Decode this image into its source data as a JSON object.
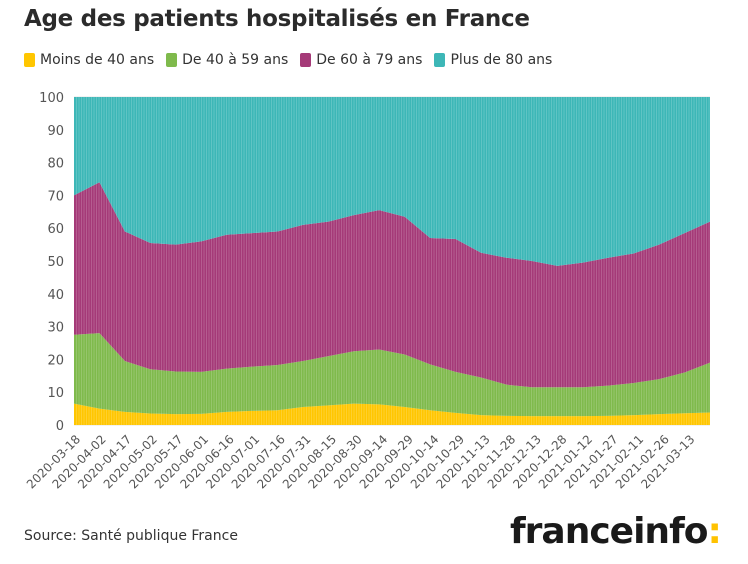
{
  "chart_data": {
    "type": "area",
    "stacked": true,
    "title": "Age des patients hospitalisés en France",
    "source": "Source: Santé publique France",
    "brand": {
      "name": "franceinfo",
      "suffix": ":"
    },
    "ylim": [
      0,
      100
    ],
    "yticks": [
      "0",
      "10",
      "20",
      "30",
      "40",
      "50",
      "60",
      "70",
      "80",
      "90",
      "100"
    ],
    "xlabel": "",
    "ylabel": "",
    "date_ticks": [
      "2020-03-18",
      "2020-04-02",
      "2020-04-17",
      "2020-05-02",
      "2020-05-17",
      "2020-06-01",
      "2020-06-16",
      "2020-07-01",
      "2020-07-16",
      "2020-07-31",
      "2020-08-15",
      "2020-08-30",
      "2020-09-14",
      "2020-09-29",
      "2020-10-14",
      "2020-10-29",
      "2020-11-13",
      "2020-11-28",
      "2020-12-13",
      "2020-12-28",
      "2021-01-12",
      "2021-01-27",
      "2021-02-11",
      "2021-02-26",
      "2021-03-13"
    ],
    "series": [
      {
        "name": "Moins de 40 ans",
        "color": "#ffc600",
        "values": [
          6.5,
          5.0,
          4.0,
          3.5,
          3.3,
          3.4,
          4.0,
          4.3,
          4.5,
          5.5,
          6.0,
          6.5,
          6.3,
          5.5,
          4.5,
          3.7,
          3.0,
          2.8,
          2.7,
          2.7,
          2.7,
          2.8,
          3.0,
          3.3,
          3.6,
          3.8
        ]
      },
      {
        "name": "De 40 à 59 ans",
        "color": "#7fba4c",
        "values": [
          21.0,
          23.0,
          15.5,
          13.5,
          13.0,
          12.8,
          13.2,
          13.5,
          13.8,
          14.0,
          15.0,
          16.0,
          16.7,
          16.0,
          14.0,
          12.5,
          11.5,
          9.5,
          8.8,
          8.8,
          8.8,
          9.2,
          9.8,
          10.7,
          12.4,
          15.2
        ]
      },
      {
        "name": "De 60 à 79 ans",
        "color": "#a53a78",
        "values": [
          42.5,
          46.0,
          39.5,
          38.5,
          38.7,
          39.8,
          40.8,
          40.7,
          40.7,
          41.5,
          41.0,
          41.5,
          42.5,
          42.0,
          38.5,
          40.5,
          38.0,
          38.7,
          38.5,
          37.0,
          38.0,
          39.0,
          39.5,
          41.0,
          42.5,
          43.0
        ]
      },
      {
        "name": "Plus de 80 ans",
        "color": "#3db7b7",
        "values": [
          30.0,
          26.0,
          41.0,
          44.5,
          45.0,
          44.0,
          42.0,
          41.5,
          41.0,
          39.0,
          38.0,
          36.0,
          34.5,
          36.5,
          43.0,
          43.3,
          47.5,
          49.0,
          50.0,
          51.5,
          50.5,
          49.0,
          47.7,
          45.0,
          41.5,
          38.0
        ]
      }
    ]
  }
}
